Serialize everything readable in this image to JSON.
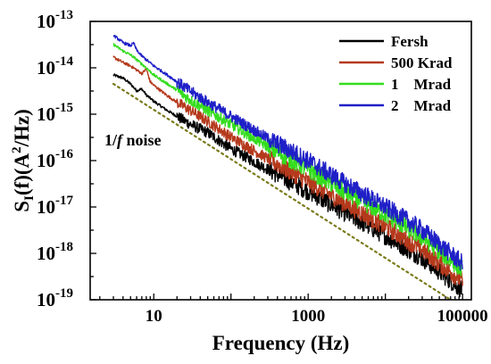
{
  "chart_data": {
    "type": "line",
    "title": "",
    "xlabel": "Frequency (Hz)",
    "ylabel": "S",
    "ylabel_sub": "I",
    "ylabel_rest": "(f)(A",
    "ylabel_sup": "2",
    "ylabel_end": "/Hz)",
    "xscale": "log",
    "yscale": "log",
    "xlim": [
      1.5,
      130000
    ],
    "ylim": [
      1e-19,
      1e-13
    ],
    "x_ticks": [
      10,
      1000,
      100000
    ],
    "x_tick_labels": [
      "10",
      "1000",
      "100000"
    ],
    "y_ticks": [
      -19,
      -18,
      -17,
      -16,
      -15,
      -14,
      -13
    ],
    "y_tick_base": "10",
    "y_tick_exponents": [
      "-19",
      "-18",
      "-17",
      "-16",
      "-15",
      "-14",
      "-13"
    ],
    "grid": false,
    "legend_position": "top-right",
    "series": [
      {
        "name": "Fersh",
        "color": "#000000",
        "points": [
          [
            3,
            7e-15
          ],
          [
            4,
            6e-15
          ],
          [
            5,
            4.5e-15
          ],
          [
            6,
            3.2e-15
          ],
          [
            7,
            3.5e-15
          ],
          [
            8,
            2.6e-15
          ],
          [
            10,
            1.9e-15
          ],
          [
            15,
            1.2e-15
          ],
          [
            20,
            9e-16
          ],
          [
            30,
            6e-16
          ],
          [
            50,
            4e-16
          ],
          [
            100,
            1.8e-16
          ],
          [
            300,
            6.5e-17
          ],
          [
            1000,
            2.2e-17
          ],
          [
            3000,
            7.5e-18
          ],
          [
            10000,
            2.4e-18
          ],
          [
            30000,
            8e-19
          ],
          [
            100000,
            1.6e-19
          ]
        ]
      },
      {
        "name": "500 Krad",
        "color": "#b5391c",
        "points": [
          [
            3,
            1.7e-14
          ],
          [
            4,
            1.3e-14
          ],
          [
            5,
            1.1e-14
          ],
          [
            6,
            9e-15
          ],
          [
            7,
            7.5e-15
          ],
          [
            8,
            9.5e-15
          ],
          [
            9,
            5e-15
          ],
          [
            10,
            4.2e-15
          ],
          [
            15,
            2.5e-15
          ],
          [
            20,
            1.8e-15
          ],
          [
            30,
            1.2e-15
          ],
          [
            50,
            7e-16
          ],
          [
            100,
            3.2e-16
          ],
          [
            300,
            1.1e-16
          ],
          [
            1000,
            3.5e-17
          ],
          [
            3000,
            1.2e-17
          ],
          [
            10000,
            3.8e-18
          ],
          [
            30000,
            1.2e-18
          ],
          [
            100000,
            2.5e-19
          ]
        ]
      },
      {
        "name": "1    Mrad",
        "color": "#33dd1d",
        "points": [
          [
            3,
            3.2e-14
          ],
          [
            4,
            2.3e-14
          ],
          [
            5,
            1.9e-14
          ],
          [
            6,
            1.5e-14
          ],
          [
            7,
            1.2e-14
          ],
          [
            8,
            1e-14
          ],
          [
            10,
            7e-15
          ],
          [
            15,
            4.5e-15
          ],
          [
            20,
            3.3e-15
          ],
          [
            30,
            2e-15
          ],
          [
            50,
            1.2e-15
          ],
          [
            100,
            6e-16
          ],
          [
            300,
            2e-16
          ],
          [
            1000,
            6.5e-17
          ],
          [
            3000,
            2.1e-17
          ],
          [
            10000,
            7e-18
          ],
          [
            30000,
            2.2e-18
          ],
          [
            100000,
            4.5e-19
          ]
        ]
      },
      {
        "name": "2    Mrad",
        "color": "#1f1fc8",
        "points": [
          [
            3,
            5e-14
          ],
          [
            4,
            3.5e-14
          ],
          [
            5,
            3e-14
          ],
          [
            5.5,
            3.4e-14
          ],
          [
            6,
            2.4e-14
          ],
          [
            7,
            1.8e-14
          ],
          [
            8,
            1.5e-14
          ],
          [
            10,
            1.1e-14
          ],
          [
            15,
            7e-15
          ],
          [
            20,
            5e-15
          ],
          [
            30,
            3.1e-15
          ],
          [
            50,
            1.8e-15
          ],
          [
            100,
            9e-16
          ],
          [
            300,
            3e-16
          ],
          [
            1000,
            1e-16
          ],
          [
            3000,
            3.2e-17
          ],
          [
            10000,
            1e-17
          ],
          [
            30000,
            3.2e-18
          ],
          [
            100000,
            6e-19
          ]
        ]
      }
    ],
    "reference_line": {
      "label_prefix": "1/",
      "label_italic": "f",
      "label_suffix": " noise",
      "color": "#7a7a1a",
      "points": [
        [
          3,
          4.5e-15
        ],
        [
          70000,
          1e-19
        ]
      ]
    }
  }
}
